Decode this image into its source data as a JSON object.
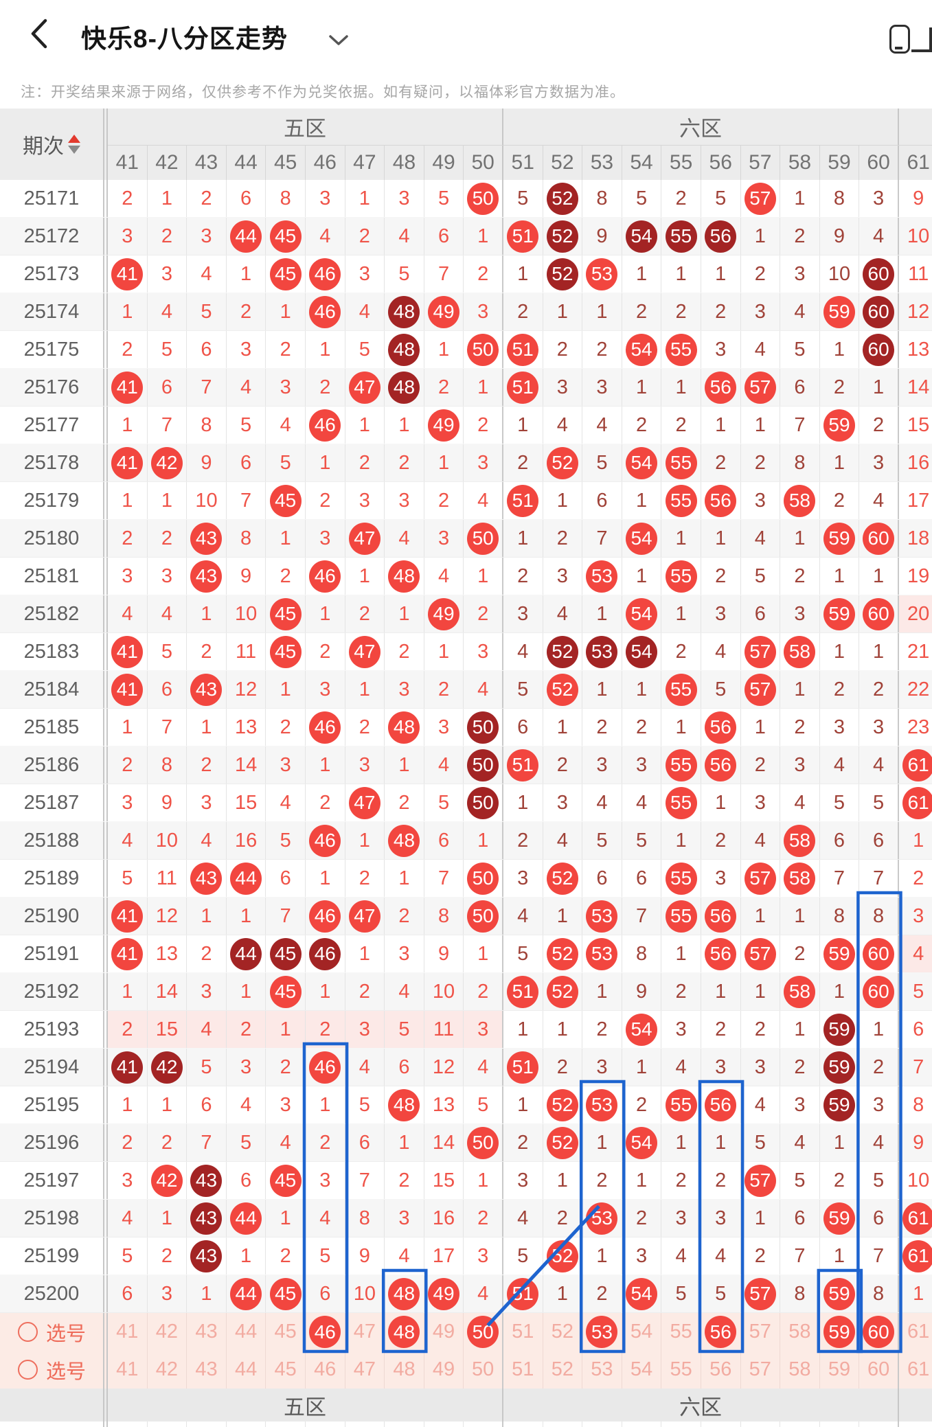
{
  "topbar": {
    "title": "快乐8-八分区走势",
    "back_icon": "chevron-left",
    "dropdown_icon": "chevron-down",
    "window_icon": "floating-window"
  },
  "note": "注：开奖结果来源于网络，仅供参考不作为兑奖依据。如有疑问，以福体彩官方数据为准。",
  "table": {
    "period_header": "期次",
    "sort_icons": [
      "ascending",
      "descending"
    ],
    "zones": [
      {
        "label": "五区",
        "span": 10
      },
      {
        "label": "六区",
        "span": 10
      },
      {
        "label": "",
        "span": 1
      }
    ],
    "columns": [
      41,
      42,
      43,
      44,
      45,
      46,
      47,
      48,
      49,
      50,
      51,
      52,
      53,
      54,
      55,
      56,
      57,
      58,
      59,
      60,
      61
    ],
    "rows": [
      {
        "period": "25171",
        "cells": [
          2,
          1,
          2,
          6,
          8,
          3,
          1,
          3,
          5,
          "50H",
          5,
          "52D",
          8,
          5,
          2,
          5,
          "57H",
          1,
          8,
          3,
          9
        ]
      },
      {
        "period": "25172",
        "cells": [
          3,
          2,
          3,
          "44H",
          "45H",
          4,
          2,
          4,
          6,
          1,
          "51H",
          "52D",
          9,
          "54D",
          "55D",
          "56D",
          1,
          2,
          9,
          4,
          10
        ]
      },
      {
        "period": "25173",
        "cells": [
          "41H",
          3,
          4,
          1,
          "45H",
          "46H",
          3,
          5,
          7,
          2,
          1,
          "52D",
          "53H",
          1,
          1,
          1,
          2,
          3,
          10,
          "60D",
          11
        ]
      },
      {
        "period": "25174",
        "cells": [
          1,
          4,
          5,
          2,
          1,
          "46H",
          4,
          "48D",
          "49H",
          3,
          2,
          1,
          1,
          2,
          2,
          2,
          3,
          4,
          "59H",
          "60D",
          12
        ]
      },
      {
        "period": "25175",
        "cells": [
          2,
          5,
          6,
          3,
          2,
          1,
          5,
          "48D",
          1,
          "50H",
          "51H",
          2,
          2,
          "54H",
          "55H",
          3,
          4,
          5,
          1,
          "60D",
          13
        ]
      },
      {
        "period": "25176",
        "cells": [
          "41H",
          6,
          7,
          4,
          3,
          2,
          "47H",
          "48D",
          2,
          1,
          "51H",
          3,
          3,
          1,
          1,
          "56H",
          "57H",
          6,
          2,
          1,
          14
        ]
      },
      {
        "period": "25177",
        "cells": [
          1,
          7,
          8,
          5,
          4,
          "46H",
          1,
          1,
          "49H",
          2,
          1,
          4,
          4,
          2,
          2,
          1,
          1,
          7,
          "59H",
          2,
          15
        ]
      },
      {
        "period": "25178",
        "cells": [
          "41H",
          "42H",
          9,
          6,
          5,
          1,
          2,
          2,
          1,
          3,
          2,
          "52H",
          5,
          "54H",
          "55H",
          2,
          2,
          8,
          1,
          3,
          16
        ]
      },
      {
        "period": "25179",
        "cells": [
          1,
          1,
          10,
          7,
          "45H",
          2,
          3,
          3,
          2,
          4,
          "51H",
          1,
          6,
          1,
          "55H",
          "56H",
          3,
          "58H",
          2,
          4,
          17
        ]
      },
      {
        "period": "25180",
        "cells": [
          2,
          2,
          "43H",
          8,
          1,
          3,
          "47H",
          4,
          3,
          "50H",
          1,
          2,
          7,
          "54H",
          1,
          1,
          4,
          1,
          "59H",
          "60H",
          18
        ]
      },
      {
        "period": "25181",
        "cells": [
          3,
          3,
          "43H",
          9,
          2,
          "46H",
          1,
          "48H",
          4,
          1,
          2,
          3,
          "53H",
          1,
          "55H",
          2,
          5,
          2,
          1,
          1,
          19
        ]
      },
      {
        "period": "25182",
        "cells": [
          4,
          4,
          1,
          10,
          "45H",
          1,
          2,
          1,
          "49H",
          2,
          3,
          4,
          1,
          "54H",
          1,
          3,
          6,
          3,
          "59H",
          "60H",
          20
        ]
      },
      {
        "period": "25183",
        "cells": [
          "41H",
          5,
          2,
          11,
          "45H",
          2,
          "47H",
          2,
          1,
          3,
          4,
          "52D",
          "53D",
          "54D",
          2,
          4,
          "57H",
          "58H",
          1,
          1,
          21
        ]
      },
      {
        "period": "25184",
        "cells": [
          "41H",
          6,
          "43H",
          12,
          1,
          3,
          1,
          3,
          2,
          4,
          5,
          "52H",
          1,
          1,
          "55H",
          5,
          "57H",
          1,
          2,
          2,
          22
        ]
      },
      {
        "period": "25185",
        "cells": [
          1,
          7,
          1,
          13,
          2,
          "46H",
          2,
          "48H",
          3,
          "50D",
          6,
          1,
          2,
          2,
          1,
          "56H",
          1,
          2,
          3,
          3,
          23
        ]
      },
      {
        "period": "25186",
        "cells": [
          2,
          8,
          2,
          14,
          3,
          1,
          3,
          1,
          4,
          "50D",
          "51H",
          2,
          3,
          3,
          "55H",
          "56H",
          2,
          3,
          4,
          4,
          "61H"
        ]
      },
      {
        "period": "25187",
        "cells": [
          3,
          9,
          3,
          15,
          4,
          2,
          "47H",
          2,
          5,
          "50D",
          1,
          3,
          4,
          4,
          "55H",
          1,
          3,
          4,
          5,
          5,
          "61H"
        ]
      },
      {
        "period": "25188",
        "cells": [
          4,
          10,
          4,
          16,
          5,
          "46H",
          1,
          "48H",
          6,
          1,
          2,
          4,
          5,
          5,
          1,
          2,
          4,
          "58H",
          6,
          6,
          1
        ]
      },
      {
        "period": "25189",
        "cells": [
          5,
          11,
          "43H",
          "44H",
          6,
          1,
          2,
          1,
          7,
          "50H",
          3,
          "52H",
          6,
          6,
          "55H",
          3,
          "57H",
          "58H",
          7,
          7,
          2
        ]
      },
      {
        "period": "25190",
        "cells": [
          "41H",
          12,
          1,
          1,
          7,
          "46H",
          "47H",
          2,
          8,
          "50H",
          4,
          1,
          "53H",
          7,
          "55H",
          "56H",
          1,
          1,
          8,
          8,
          3
        ]
      },
      {
        "period": "25191",
        "cells": [
          "41H",
          13,
          2,
          "44D",
          "45D",
          "46D",
          1,
          3,
          9,
          1,
          5,
          "52H",
          "53H",
          8,
          1,
          "56H",
          "57H",
          2,
          "59H",
          "60H",
          4
        ]
      },
      {
        "period": "25192",
        "cells": [
          1,
          14,
          3,
          1,
          "45H",
          1,
          2,
          4,
          10,
          2,
          "51H",
          "52H",
          1,
          9,
          2,
          1,
          1,
          "58H",
          1,
          "60H",
          5
        ]
      },
      {
        "period": "25193",
        "cells": [
          2,
          15,
          4,
          2,
          1,
          2,
          3,
          5,
          11,
          3,
          1,
          1,
          2,
          "54H",
          3,
          2,
          2,
          1,
          "59D",
          1,
          6
        ]
      },
      {
        "period": "25194",
        "cells": [
          "41D",
          "42D",
          5,
          3,
          2,
          "46H",
          4,
          6,
          12,
          4,
          "51H",
          2,
          3,
          1,
          4,
          3,
          3,
          2,
          "59D",
          2,
          7
        ]
      },
      {
        "period": "25195",
        "cells": [
          1,
          1,
          6,
          4,
          3,
          1,
          5,
          "48H",
          13,
          5,
          1,
          "52H",
          "53H",
          2,
          "55H",
          "56H",
          4,
          3,
          "59D",
          3,
          8
        ]
      },
      {
        "period": "25196",
        "cells": [
          2,
          2,
          7,
          5,
          4,
          2,
          6,
          1,
          14,
          "50H",
          2,
          "52H",
          1,
          "54H",
          1,
          1,
          5,
          4,
          1,
          4,
          9
        ]
      },
      {
        "period": "25197",
        "cells": [
          3,
          "42H",
          "43D",
          6,
          "45H",
          3,
          7,
          2,
          15,
          1,
          3,
          1,
          2,
          1,
          2,
          2,
          "57H",
          5,
          2,
          5,
          10
        ]
      },
      {
        "period": "25198",
        "cells": [
          4,
          1,
          "43D",
          "44H",
          1,
          4,
          8,
          3,
          16,
          2,
          4,
          2,
          "53H",
          2,
          3,
          3,
          1,
          6,
          "59H",
          6,
          "61H"
        ]
      },
      {
        "period": "25199",
        "cells": [
          5,
          2,
          "43D",
          1,
          2,
          5,
          9,
          4,
          17,
          3,
          5,
          "52H",
          1,
          3,
          4,
          4,
          2,
          7,
          1,
          7,
          "61H"
        ]
      },
      {
        "period": "25200",
        "cells": [
          6,
          3,
          1,
          "44H",
          "45H",
          6,
          10,
          "48H",
          "49H",
          4,
          "51H",
          1,
          2,
          "54H",
          5,
          5,
          "57H",
          8,
          "59H",
          8,
          1
        ]
      }
    ],
    "selection_rows": [
      {
        "label": "选号",
        "cells": [
          41,
          42,
          43,
          44,
          45,
          "46H",
          47,
          "48H",
          49,
          "50H",
          51,
          52,
          "53H",
          54,
          55,
          "56H",
          57,
          58,
          "59H",
          "60H",
          61
        ]
      },
      {
        "label": "选号",
        "cells": [
          41,
          42,
          43,
          44,
          45,
          46,
          47,
          48,
          49,
          50,
          51,
          52,
          53,
          54,
          55,
          56,
          57,
          58,
          59,
          60,
          61
        ]
      }
    ],
    "footer_zones": [
      "五区",
      "六区"
    ]
  },
  "annotations": {
    "highlight_boxes": [
      {
        "col": 46,
        "from_period": "25194"
      },
      {
        "col": 48,
        "from_period": "25200"
      },
      {
        "col": 53,
        "from_period": "25195"
      },
      {
        "col": 56,
        "from_period": "25195"
      },
      {
        "col": 59,
        "from_period": "25200"
      },
      {
        "col": 60,
        "from_period": "25190"
      }
    ],
    "trend_line": {
      "from_col": 50,
      "from_row": "selection-1",
      "to_col": 53,
      "to_period": "25198"
    },
    "tinted_cells": [
      {
        "period": "25182",
        "cols": [
          61
        ]
      },
      {
        "period": "25191",
        "cols": [
          61
        ]
      },
      {
        "period": "25193",
        "cols": [
          41,
          42,
          43,
          44,
          45,
          46,
          47,
          48,
          49,
          50
        ]
      }
    ]
  },
  "colors": {
    "hit_ball": "#f2463f",
    "repeat_ball": "#a32424",
    "zone_odd_text": "#ef5348",
    "zone_even_text": "#a04238",
    "selection_bg": "#fcebe5",
    "selection_text": "#f2aba1",
    "selection_label": "#ee6a58",
    "annotation_blue": "#1e64cf",
    "tint_bg": "#fce9e7",
    "sort_asc": "#e23a2e",
    "sort_desc": "#8a8a8a",
    "header_bg": "#ececec"
  }
}
